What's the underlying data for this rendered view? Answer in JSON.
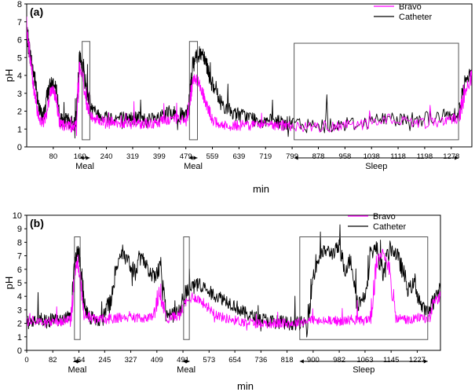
{
  "chart_data": [
    {
      "id": "a",
      "panel_label": "(a)",
      "type": "line",
      "xlabel": "min",
      "ylabel": "pH",
      "xlim": [
        0,
        1340
      ],
      "ylim": [
        0,
        8
      ],
      "yticks": [
        0,
        1,
        2,
        3,
        4,
        5,
        6,
        7,
        8
      ],
      "xticks": [
        80,
        160,
        240,
        319,
        399,
        479,
        559,
        639,
        719,
        799,
        878,
        958,
        1038,
        1118,
        1198,
        1278
      ],
      "legend": {
        "position": "top-right",
        "entries": [
          "Bravo",
          "Catheter"
        ]
      },
      "series": [
        {
          "name": "Catheter",
          "color": "#000000",
          "x": [
            0,
            10,
            20,
            30,
            40,
            50,
            60,
            70,
            80,
            90,
            100,
            110,
            120,
            130,
            140,
            150,
            160,
            170,
            180,
            190,
            200,
            220,
            240,
            260,
            280,
            300,
            320,
            340,
            360,
            380,
            400,
            420,
            440,
            460,
            480,
            490,
            500,
            510,
            520,
            530,
            540,
            550,
            560,
            580,
            600,
            620,
            640,
            660,
            680,
            700,
            720,
            740,
            760,
            780,
            800,
            850,
            900,
            950,
            1000,
            1050,
            1100,
            1150,
            1200,
            1250,
            1280,
            1300,
            1320,
            1340
          ],
          "y": [
            6.5,
            5.2,
            4.2,
            3.2,
            2.0,
            1.6,
            2.8,
            3.4,
            3.6,
            3.0,
            1.6,
            1.4,
            1.5,
            1.4,
            1.3,
            1.5,
            5.0,
            4.5,
            3.2,
            2.5,
            2.0,
            1.8,
            1.7,
            1.6,
            1.6,
            1.6,
            1.6,
            1.6,
            1.5,
            1.5,
            1.6,
            1.8,
            1.9,
            1.8,
            1.7,
            2.5,
            4.5,
            5.0,
            5.2,
            5.3,
            4.8,
            4.0,
            3.4,
            2.6,
            2.2,
            1.9,
            1.8,
            1.7,
            1.6,
            1.5,
            1.5,
            1.4,
            1.4,
            1.3,
            1.3,
            1.2,
            1.2,
            1.3,
            1.3,
            1.5,
            1.6,
            1.5,
            1.6,
            1.7,
            1.8,
            2.0,
            3.5,
            4.2
          ]
        },
        {
          "name": "Bravo",
          "color": "#ff00ff",
          "x": [
            0,
            10,
            20,
            30,
            40,
            50,
            60,
            70,
            80,
            90,
            100,
            110,
            120,
            130,
            140,
            150,
            160,
            170,
            180,
            190,
            200,
            220,
            240,
            260,
            280,
            300,
            320,
            340,
            360,
            380,
            400,
            420,
            440,
            460,
            480,
            490,
            500,
            510,
            520,
            530,
            540,
            550,
            560,
            580,
            600,
            620,
            640,
            660,
            680,
            700,
            720,
            740,
            760,
            780,
            800,
            850,
            900,
            950,
            1000,
            1050,
            1100,
            1150,
            1200,
            1250,
            1280,
            1300,
            1320,
            1340
          ],
          "y": [
            6.8,
            5.0,
            3.6,
            2.2,
            1.5,
            1.3,
            2.0,
            3.0,
            3.2,
            2.6,
            1.3,
            1.2,
            1.2,
            1.2,
            1.1,
            1.2,
            4.6,
            3.8,
            2.4,
            1.9,
            1.6,
            1.5,
            1.4,
            1.4,
            1.3,
            1.3,
            1.3,
            1.3,
            1.3,
            1.3,
            1.4,
            1.5,
            1.6,
            1.5,
            1.5,
            2.3,
            3.8,
            3.8,
            3.5,
            3.0,
            2.4,
            2.0,
            1.5,
            1.3,
            1.2,
            1.2,
            1.2,
            1.2,
            1.2,
            1.2,
            1.2,
            1.2,
            1.2,
            1.2,
            1.1,
            1.1,
            1.1,
            1.2,
            1.2,
            1.4,
            1.6,
            1.4,
            1.3,
            1.4,
            1.6,
            1.5,
            3.0,
            4.0
          ]
        }
      ],
      "boxes": [
        {
          "x0": 167,
          "x1": 190,
          "y0": 0.4,
          "y1": 5.9
        },
        {
          "x0": 490,
          "x1": 514,
          "y0": 0.4,
          "y1": 5.9
        },
        {
          "x0": 805,
          "x1": 1300,
          "y0": 0.4,
          "y1": 5.8
        }
      ],
      "annotations": [
        {
          "text": "Meal",
          "x0": 160,
          "x1": 190
        },
        {
          "text": "Meal",
          "x0": 488,
          "x1": 514
        },
        {
          "text": "Sleep",
          "x0": 805,
          "x1": 1300
        }
      ]
    },
    {
      "id": "b",
      "panel_label": "(b)",
      "type": "line",
      "xlabel": "min",
      "ylabel": "pH",
      "xlim": [
        0,
        1300
      ],
      "ylim": [
        0,
        10
      ],
      "yticks": [
        0,
        1,
        2,
        3,
        4,
        5,
        6,
        7,
        8,
        9,
        10
      ],
      "xticks": [
        0,
        82,
        164,
        245,
        327,
        409,
        491,
        573,
        654,
        736,
        818,
        900,
        982,
        1063,
        1145,
        1227
      ],
      "legend": {
        "position": "top-right",
        "entries": [
          "Bravo",
          "Catheter"
        ]
      },
      "series": [
        {
          "name": "Catheter",
          "color": "#000000",
          "x": [
            0,
            20,
            40,
            60,
            80,
            100,
            120,
            140,
            150,
            160,
            170,
            180,
            200,
            220,
            240,
            260,
            280,
            300,
            320,
            340,
            360,
            380,
            400,
            420,
            440,
            460,
            480,
            500,
            520,
            540,
            560,
            580,
            600,
            620,
            640,
            660,
            680,
            700,
            720,
            740,
            760,
            780,
            800,
            820,
            840,
            860,
            880,
            900,
            920,
            940,
            960,
            980,
            1000,
            1020,
            1040,
            1060,
            1080,
            1100,
            1120,
            1140,
            1160,
            1180,
            1200,
            1220,
            1240,
            1260,
            1280,
            1300
          ],
          "y": [
            2.0,
            2.2,
            2.4,
            2.1,
            2.3,
            2.2,
            2.4,
            2.6,
            6.0,
            7.6,
            6.2,
            3.5,
            2.4,
            2.3,
            2.2,
            3.5,
            6.2,
            7.0,
            6.5,
            5.8,
            7.2,
            6.0,
            5.4,
            6.2,
            2.5,
            2.6,
            3.0,
            4.3,
            4.6,
            5.0,
            4.6,
            4.2,
            4.0,
            3.8,
            3.5,
            3.2,
            2.8,
            2.6,
            2.4,
            2.3,
            2.2,
            2.1,
            2.1,
            2.0,
            2.0,
            2.0,
            2.1,
            5.5,
            7.0,
            7.4,
            7.2,
            7.6,
            6.0,
            6.8,
            3.4,
            4.0,
            7.2,
            7.6,
            5.5,
            7.6,
            7.2,
            6.0,
            4.5,
            5.0,
            3.2,
            2.8,
            3.8,
            4.5
          ]
        },
        {
          "name": "Bravo",
          "color": "#ff00ff",
          "x": [
            0,
            20,
            40,
            60,
            80,
            100,
            120,
            140,
            150,
            160,
            170,
            180,
            200,
            220,
            240,
            260,
            280,
            300,
            320,
            340,
            360,
            380,
            400,
            420,
            440,
            460,
            480,
            500,
            520,
            540,
            560,
            580,
            600,
            620,
            640,
            660,
            680,
            700,
            720,
            740,
            760,
            780,
            800,
            820,
            840,
            860,
            880,
            900,
            920,
            940,
            960,
            980,
            1000,
            1020,
            1040,
            1060,
            1080,
            1100,
            1120,
            1140,
            1160,
            1180,
            1200,
            1220,
            1240,
            1260,
            1280,
            1300
          ],
          "y": [
            2.1,
            2.2,
            2.3,
            2.0,
            2.2,
            2.1,
            2.2,
            2.5,
            5.2,
            6.6,
            4.8,
            2.6,
            2.4,
            2.3,
            2.3,
            2.3,
            2.4,
            2.4,
            2.4,
            2.4,
            2.4,
            2.4,
            2.6,
            4.0,
            2.3,
            2.5,
            2.6,
            3.5,
            4.0,
            3.8,
            3.4,
            3.0,
            2.6,
            2.4,
            2.3,
            2.2,
            2.1,
            2.1,
            2.0,
            2.0,
            2.0,
            2.0,
            2.0,
            2.0,
            2.0,
            2.1,
            2.2,
            2.3,
            2.1,
            2.2,
            2.3,
            2.1,
            2.2,
            2.3,
            2.2,
            2.2,
            2.4,
            6.4,
            7.5,
            6.0,
            2.3,
            2.4,
            2.2,
            2.3,
            2.5,
            2.2,
            3.5,
            4.0
          ]
        }
      ],
      "boxes": [
        {
          "x0": 150,
          "x1": 168,
          "y0": 0.8,
          "y1": 8.4
        },
        {
          "x0": 493,
          "x1": 511,
          "y0": 0.8,
          "y1": 8.4
        },
        {
          "x0": 858,
          "x1": 1260,
          "y0": 0.8,
          "y1": 8.4
        }
      ],
      "annotations": [
        {
          "text": "Meal",
          "x0": 148,
          "x1": 170
        },
        {
          "text": "Meal",
          "x0": 490,
          "x1": 512
        },
        {
          "text": "Sleep",
          "x0": 858,
          "x1": 1260
        }
      ]
    }
  ]
}
